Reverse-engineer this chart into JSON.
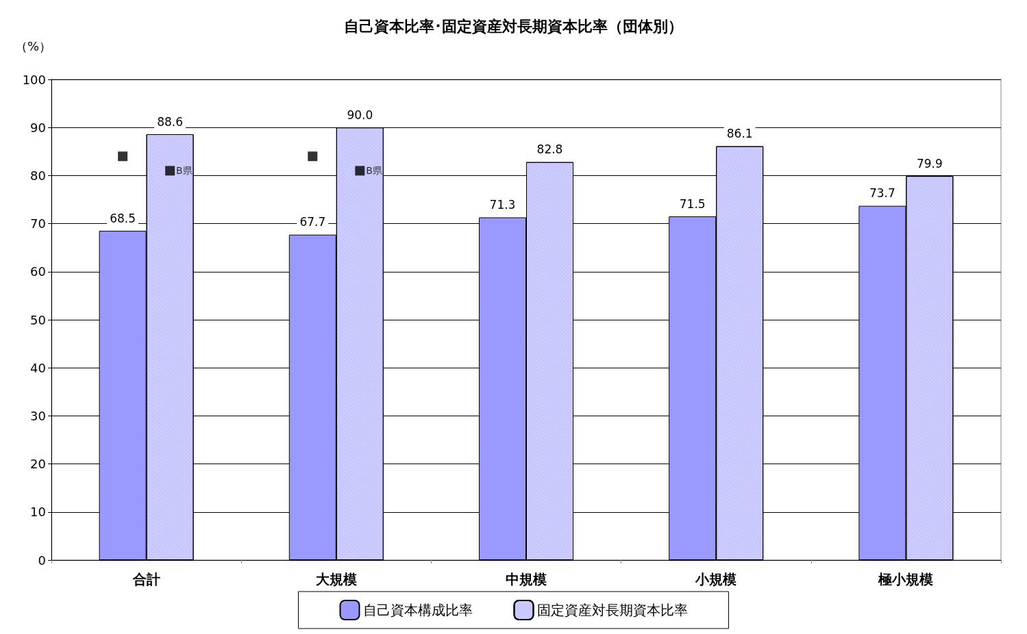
{
  "chart_data": {
    "type": "bar",
    "title": "自己資本比率･固定資産対長期資本比率（団体別）",
    "ylabel": "（%）",
    "categories": [
      "合計",
      "大規模",
      "中規模",
      "小規模",
      "極小規模"
    ],
    "series": [
      {
        "name": "自己資本構成比率",
        "color": "#9999ff",
        "values": [
          68.5,
          67.7,
          71.3,
          71.5,
          73.7
        ],
        "value_labels": [
          "68.5",
          "67.7",
          "71.3",
          "71.5",
          "73.7"
        ]
      },
      {
        "name": "固定資産対長期資本比率",
        "color": "#ccccff",
        "values": [
          88.6,
          90.0,
          82.8,
          86.1,
          79.9
        ],
        "value_labels": [
          "88.6",
          "90.0",
          "82.8",
          "86.1",
          "79.9"
        ]
      },
      {
        "type": "scatter",
        "marker": "square",
        "color": "#000000",
        "values": [
          84,
          84,
          null,
          null,
          null
        ]
      },
      {
        "type": "scatter",
        "marker": "square",
        "name": "B県",
        "color": "#000000",
        "values": [
          81,
          81,
          null,
          null,
          null
        ]
      }
    ],
    "ylim": [
      0,
      100
    ],
    "yticks": [
      0,
      10,
      20,
      30,
      40,
      50,
      60,
      70,
      80,
      90,
      100
    ],
    "grid": "y",
    "legend": "bottom"
  }
}
